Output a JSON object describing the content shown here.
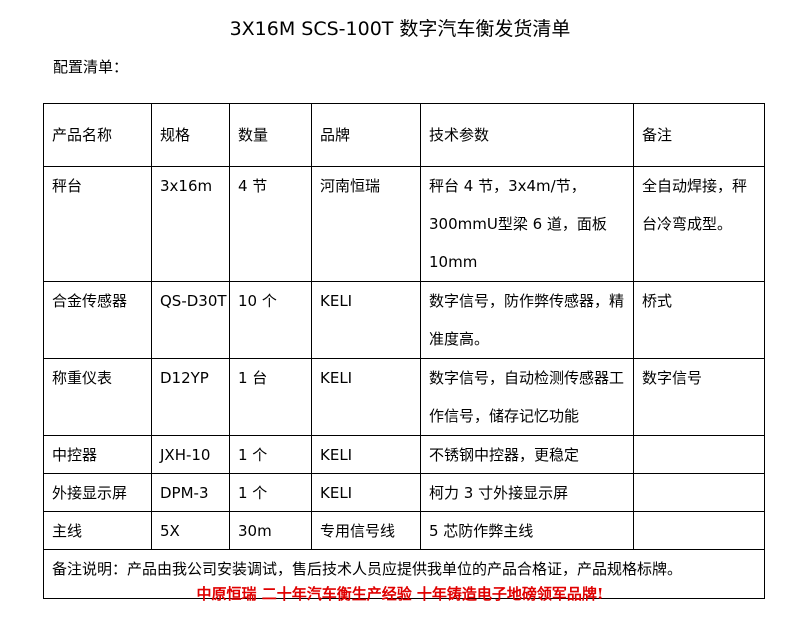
{
  "title": "3X16M SCS-100T 数字汽车衡发货清单",
  "subtitle": "配置清单：",
  "table": {
    "headers": [
      "产品名称",
      "规格",
      "数量",
      "品牌",
      "技术参数",
      "备注"
    ],
    "rows": [
      [
        "秤台",
        "3x16m",
        "4 节",
        "河南恒瑞",
        "秤台 4 节，3x4m/节，300mmU型梁 6 道，面板 10mm",
        "全自动焊接，秤台冷弯成型。"
      ],
      [
        "合金传感器",
        "QS-D30T",
        "10 个",
        "KELI",
        "数字信号，防作弊传感器，精准度高。",
        "桥式"
      ],
      [
        "称重仪表",
        "D12YP",
        "1 台",
        "KELI",
        "数字信号，自动检测传感器工作信号，储存记忆功能",
        "数字信号"
      ],
      [
        "中控器",
        "JXH-10",
        "1 个",
        "KELI",
        "不锈钢中控器，更稳定",
        ""
      ],
      [
        "外接显示屏",
        "DPM-3",
        "1 个",
        "KELI",
        "柯力 3 寸外接显示屏",
        ""
      ],
      [
        "主线",
        "5X",
        "30m",
        "专用信号线",
        "5 芯防作弊主线",
        ""
      ]
    ],
    "note": "备注说明：产品由我公司安装调试，售后技术人员应提供我单位的产品合格证，产品规格标牌。"
  },
  "slogan": "中原恒瑞 二十年汽车衡生产经验 十年铸造电子地磅领军品牌!",
  "colors": {
    "slogan": "#e00000"
  }
}
